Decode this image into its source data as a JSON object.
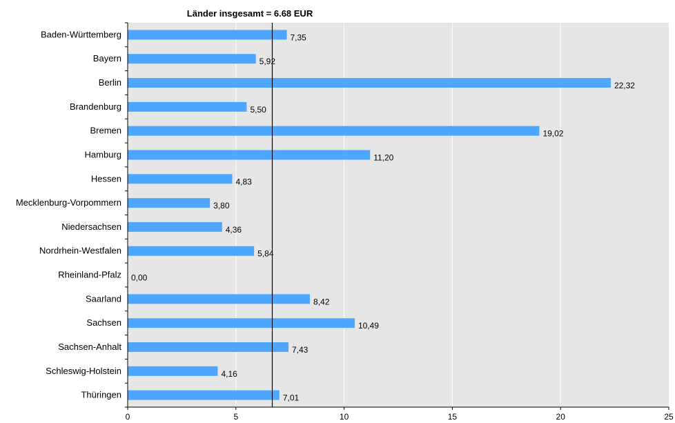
{
  "chart_data": {
    "type": "bar",
    "orientation": "horizontal",
    "categories": [
      "Baden-Württemberg",
      "Bayern",
      "Berlin",
      "Brandenburg",
      "Bremen",
      "Hamburg",
      "Hessen",
      "Mecklenburg-Vorpommern",
      "Niedersachsen",
      "Nordrhein-Westfalen",
      "Rheinland-Pfalz",
      "Saarland",
      "Sachsen",
      "Sachsen-Anhalt",
      "Schleswig-Holstein",
      "Thüringen"
    ],
    "values": [
      7.35,
      5.92,
      22.32,
      5.5,
      19.02,
      11.2,
      4.83,
      3.8,
      4.36,
      5.84,
      0.0,
      8.42,
      10.49,
      7.43,
      4.16,
      7.01
    ],
    "value_labels": [
      "7,35",
      "5,92",
      "22,32",
      "5,50",
      "19,02",
      "11,20",
      "4,83",
      "3,80",
      "4,36",
      "5,84",
      "0,00",
      "8,42",
      "10,49",
      "7,43",
      "4,16",
      "7,01"
    ],
    "xlim": [
      0,
      25
    ],
    "xticks": [
      0,
      5,
      10,
      15,
      20,
      25
    ],
    "grid": true,
    "reference_line": {
      "value": 6.68,
      "label": "Länder insgesamt = 6.68 EUR"
    },
    "colors": {
      "bar": "#4da6ff",
      "plot_background": "#e6e6e6",
      "grid": "#ffffff",
      "reference": "#000000"
    },
    "title": "",
    "xlabel": "",
    "ylabel": ""
  }
}
